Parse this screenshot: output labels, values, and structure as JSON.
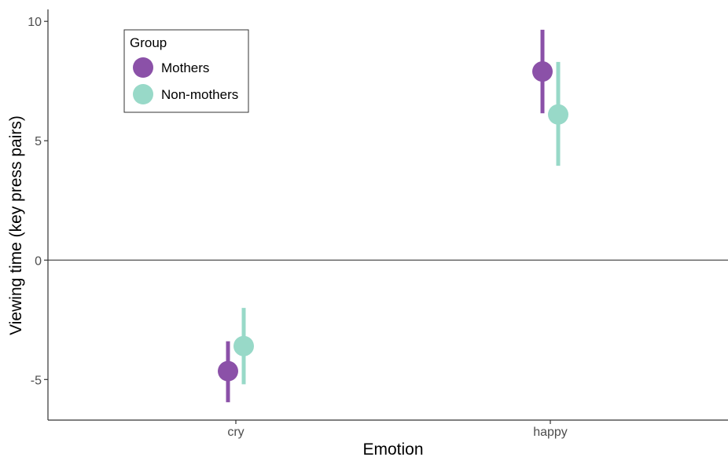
{
  "colors": {
    "mothers": "#8b51a8",
    "non_mothers": "#98d9c8",
    "axis": "#333333",
    "zero_line": "#4d4d4d"
  },
  "chart_data": {
    "type": "scatter",
    "title": "",
    "xlabel": "Emotion",
    "ylabel": "Viewing time (key press pairs)",
    "categories": [
      "cry",
      "happy"
    ],
    "ylim": [
      -6.7,
      10.5
    ],
    "yticks": [
      -5,
      0,
      5,
      10
    ],
    "ytick_labels": [
      "-5",
      "0",
      "5",
      "10"
    ],
    "reference_line": 0,
    "grid": false,
    "legend": {
      "title": "Group",
      "position": "top-left"
    },
    "series": [
      {
        "name": "Mothers",
        "color": "#8b51a8",
        "values": [
          -4.65,
          7.9
        ],
        "lower": [
          -5.95,
          6.15
        ],
        "upper": [
          -3.4,
          9.65
        ]
      },
      {
        "name": "Non-mothers",
        "color": "#98d9c8",
        "values": [
          -3.6,
          6.1
        ],
        "lower": [
          -5.2,
          3.95
        ],
        "upper": [
          -2.0,
          8.3
        ]
      }
    ]
  }
}
